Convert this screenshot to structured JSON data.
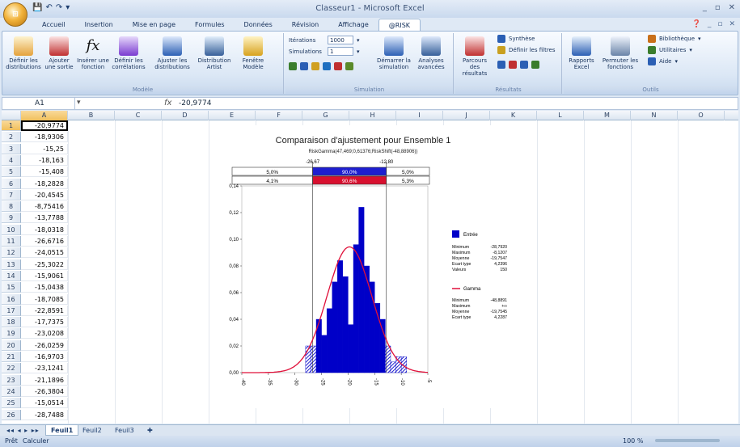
{
  "window": {
    "title": "Classeur1 - Microsoft Excel",
    "orb": "⊞",
    "qat": [
      "save-icon",
      "undo-icon",
      "redo-icon",
      "dropdown-icon"
    ]
  },
  "tabs": [
    "Accueil",
    "Insertion",
    "Mise en page",
    "Formules",
    "Données",
    "Révision",
    "Affichage",
    "@RISK"
  ],
  "active_tab": "@RISK",
  "ribbon": {
    "modele": {
      "label": "Modèle",
      "buttons": [
        {
          "label": "Définir les distributions",
          "icon": "define-distribution-icon"
        },
        {
          "label": "Ajouter une sortie",
          "icon": "add-output-icon"
        },
        {
          "label": "Insérer une fonction",
          "icon": "fx-icon",
          "arrow": "▾"
        },
        {
          "label": "Définir les corrélations",
          "icon": "correlations-icon"
        },
        {
          "label": "Ajuster les distributions",
          "icon": "fit-distribution-icon",
          "arrow": "▾"
        },
        {
          "label": "Distribution Artist",
          "icon": "distribution-artist-icon"
        },
        {
          "label": "Fenêtre Modèle",
          "icon": "model-window-icon"
        }
      ]
    },
    "simulation": {
      "label": "Simulation",
      "iterations_label": "Itérations",
      "iterations_value": "1000",
      "simulations_label": "Simulations",
      "simulations_value": "1",
      "start_label": "Démarrer la simulation",
      "advanced_label": "Analyses avancées"
    },
    "resultats": {
      "label": "Résultats",
      "browse_label": "Parcours des résultats",
      "summary_label": "Synthèse",
      "filters_label": "Définir les filtres"
    },
    "outils": {
      "label": "Outils",
      "reports_label": "Rapports Excel",
      "swap_label": "Permuter les fonctions",
      "library_label": "Bibliothèque",
      "utilities_label": "Utilitaires",
      "help_label": "Aide"
    }
  },
  "formula_bar": {
    "name_box": "A1",
    "fx": "fx",
    "formula": "-20,9774"
  },
  "columns": [
    "A",
    "B",
    "C",
    "D",
    "E",
    "F",
    "G",
    "H",
    "I",
    "J",
    "K",
    "L",
    "M",
    "N",
    "O"
  ],
  "rows": [
    "1",
    "2",
    "3",
    "4",
    "5",
    "6",
    "7",
    "8",
    "9",
    "10",
    "11",
    "12",
    "13",
    "14",
    "15",
    "16",
    "17",
    "18",
    "19",
    "20",
    "21",
    "22",
    "23",
    "24",
    "25",
    "26"
  ],
  "colA": [
    "-20,9774",
    "-18,9306",
    "-15,25",
    "-18,163",
    "-15,408",
    "-18,2828",
    "-20,4545",
    "-8,75416",
    "-13,7788",
    "-18,0318",
    "-26,6716",
    "-24,0515",
    "-25,3022",
    "-15,9061",
    "-15,0438",
    "-18,7085",
    "-22,8591",
    "-17,7375",
    "-23,0208",
    "-26,0259",
    "-16,9703",
    "-23,1241",
    "-21,1896",
    "-26,3804",
    "-15,0514",
    "-28,7488"
  ],
  "sheets": [
    "Feuil1",
    "Feuil2",
    "Feuil3"
  ],
  "status": {
    "left": "Prêt",
    "calc": "Calculer",
    "zoom": "100 %"
  },
  "chart_data": {
    "type": "bar",
    "title": "Comparaison d'ajustement pour Ensemble 1",
    "subtitle": "RiskGamma(47,469;0,61376;RiskShift(-48,88906))",
    "left_marker": "-26,67",
    "right_marker": "-12,80",
    "band_top": [
      "5,0%",
      "90,0%",
      "5,0%"
    ],
    "band_bottom": [
      "4,1%",
      "90,6%",
      "5,3%"
    ],
    "xlim": [
      -40,
      -5
    ],
    "ylim": [
      0,
      0.14
    ],
    "y_ticks": [
      "0,00",
      "0,02",
      "0,04",
      "0,06",
      "0,08",
      "0,10",
      "0,12",
      "0,14"
    ],
    "x_ticks": [
      "-40",
      "-35",
      "-30",
      "-25",
      "-20",
      "-15",
      "-10",
      "-5"
    ],
    "bins_left": [
      -28,
      -27,
      -26,
      -25,
      -24,
      -23,
      -22,
      -21,
      -20,
      -19,
      -18,
      -17,
      -16,
      -15,
      -14,
      -13,
      -12,
      -11,
      -10,
      -9
    ],
    "bins_values": [
      0.02,
      0.02,
      0.04,
      0.028,
      0.048,
      0.068,
      0.084,
      0.072,
      0.036,
      0.096,
      0.124,
      0.08,
      0.068,
      0.052,
      0.04,
      0.02,
      0.008,
      0.012,
      0.012,
      0.0
    ],
    "legend": {
      "input_label": "Entrée",
      "input_color": "#0000c8",
      "input_stats": [
        [
          "Minimum",
          "-28,7920"
        ],
        [
          "Maximum",
          "-8,1207"
        ],
        [
          "Moyenne",
          "-19,7547"
        ],
        [
          "Ecart type",
          "4,2396"
        ],
        [
          "Valeurs",
          "150"
        ]
      ],
      "fit_label": "Gamma",
      "fit_color": "#e0103a",
      "fit_stats": [
        [
          "Minimum",
          "-48,8891"
        ],
        [
          "Maximum",
          "+∞"
        ],
        [
          "Moyenne",
          "-19,7545"
        ],
        [
          "Ecart type",
          "4,2287"
        ]
      ]
    }
  },
  "colors": {
    "accent": "#0000c8",
    "fit": "#e0103a",
    "band_blue": "#1e1ed0",
    "band_red": "#d8102f"
  }
}
